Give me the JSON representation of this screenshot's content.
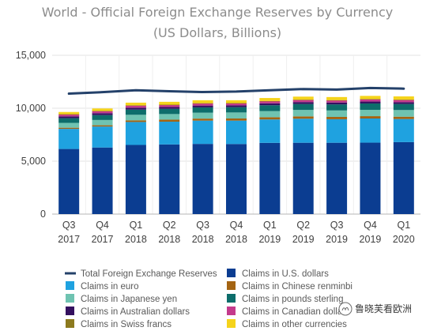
{
  "chart_data": {
    "type": "bar",
    "stacked": true,
    "title": "World - Official Foreign Exchange Reserves by Currency",
    "subtitle": "(US Dollars, Billions)",
    "categories": [
      [
        "Q3",
        "2017"
      ],
      [
        "Q4",
        "2017"
      ],
      [
        "Q1",
        "2018"
      ],
      [
        "Q2",
        "2018"
      ],
      [
        "Q3",
        "2018"
      ],
      [
        "Q4",
        "2018"
      ],
      [
        "Q1",
        "2019"
      ],
      [
        "Q2",
        "2019"
      ],
      [
        "Q3",
        "2019"
      ],
      [
        "Q4",
        "2019"
      ],
      [
        "Q1",
        "2020"
      ]
    ],
    "ylim": [
      0,
      15000
    ],
    "yticks": [
      0,
      5000,
      10000,
      15000
    ],
    "ytick_labels": [
      "0",
      "5,000",
      "10,000",
      "15,000"
    ],
    "grid": true,
    "legend_position": "bottom",
    "series": [
      {
        "name": "Claims in U.S. dollars",
        "color": "#0b3d91",
        "values": [
          6150,
          6290,
          6530,
          6580,
          6630,
          6620,
          6730,
          6740,
          6740,
          6750,
          6800
        ]
      },
      {
        "name": "Claims in euro",
        "color": "#1fa2e0",
        "values": [
          1900,
          1980,
          2170,
          2150,
          2200,
          2210,
          2210,
          2270,
          2220,
          2280,
          2180
        ]
      },
      {
        "name": "Claims in Chinese renminbi",
        "color": "#a46412",
        "values": [
          110,
          120,
          150,
          190,
          190,
          200,
          210,
          220,
          220,
          220,
          220
        ]
      },
      {
        "name": "Claims in Japanese yen",
        "color": "#6fc3b1",
        "values": [
          460,
          500,
          530,
          530,
          560,
          570,
          580,
          610,
          610,
          600,
          630
        ]
      },
      {
        "name": "Claims in pounds sterling",
        "color": "#0d6d6b",
        "values": [
          440,
          460,
          490,
          490,
          500,
          500,
          550,
          560,
          570,
          600,
          570
        ]
      },
      {
        "name": "Claims in Australian dollars",
        "color": "#34105f",
        "values": [
          170,
          180,
          180,
          170,
          170,
          170,
          180,
          180,
          180,
          180,
          170
        ]
      },
      {
        "name": "Claims in Canadian dollars",
        "color": "#c43a8c",
        "values": [
          190,
          200,
          210,
          210,
          210,
          200,
          210,
          210,
          210,
          220,
          220
        ]
      },
      {
        "name": "Claims in Swiss francs",
        "color": "#8c7a1e",
        "values": [
          16,
          18,
          16,
          16,
          16,
          16,
          16,
          16,
          16,
          16,
          18
        ]
      },
      {
        "name": "Claims in other currencies",
        "color": "#f5d31b",
        "values": [
          210,
          230,
          250,
          270,
          280,
          270,
          280,
          290,
          290,
          300,
          310
        ]
      }
    ],
    "line_series": {
      "name": "Total Foreign Exchange Reserves",
      "color": "#24416a",
      "values": [
        11380,
        11520,
        11700,
        11600,
        11530,
        11580,
        11700,
        11810,
        11760,
        11910,
        11850
      ]
    }
  },
  "watermark": "鲁晓芙看欧洲"
}
